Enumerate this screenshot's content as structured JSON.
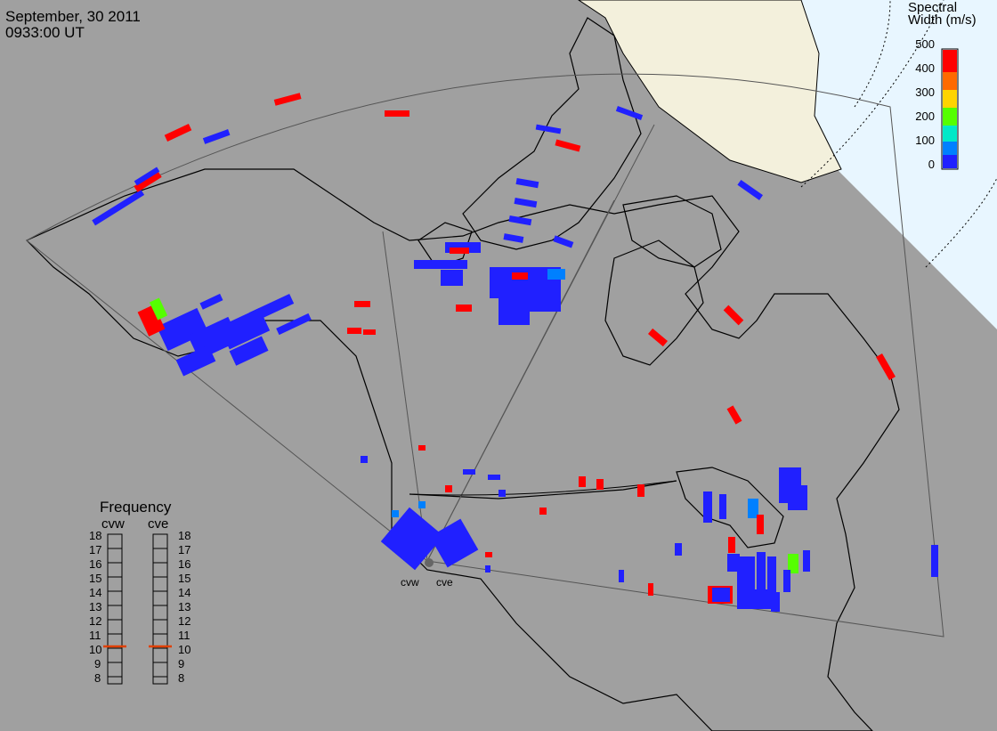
{
  "header": {
    "date": "September, 30 2011",
    "time": "0933:00 UT"
  },
  "colorbar": {
    "title_line1": "Spectral",
    "title_line2": "Width (m/s)",
    "ticks": [
      "500",
      "400",
      "300",
      "200",
      "100",
      "0"
    ],
    "colors": [
      "#ff0000",
      "#ff6a00",
      "#ffd400",
      "#55ff00",
      "#00e8c8",
      "#0080ff",
      "#2020ff"
    ]
  },
  "frequency_panel": {
    "title": "Frequency",
    "left_label": "cvw",
    "right_label": "cve",
    "scale": [
      "18",
      "17",
      "16",
      "15",
      "14",
      "13",
      "12",
      "11",
      "10",
      "9",
      "8"
    ],
    "left_value": 10.8,
    "right_value": 10.8
  },
  "radars": [
    "cvw",
    "cve"
  ],
  "colors": {
    "background": "#a0a0a0",
    "land": "#c8c8c8",
    "arctic_land": "#f3f0dc",
    "arctic_sea": "#e8f6ff",
    "low_width": "#2020ff",
    "high_width": "#ff0000",
    "freq_marker": "#e04000"
  }
}
